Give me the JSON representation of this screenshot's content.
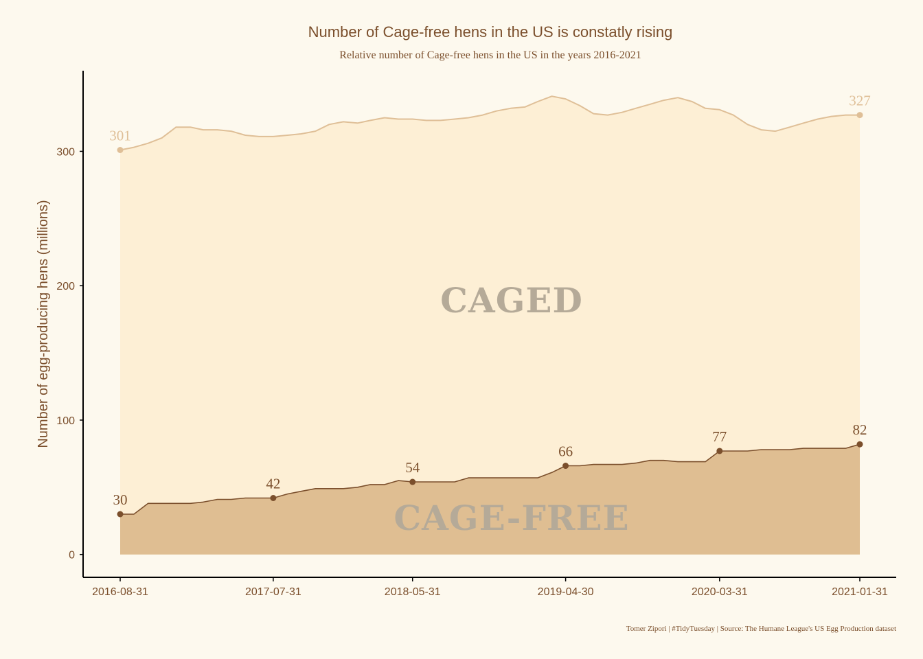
{
  "chart_data": {
    "type": "area",
    "title": "Number of Cage-free hens in the US is constatly rising",
    "subtitle": "Relative number of Cage-free hens in the US in the years 2016-2021",
    "ylabel": "Number of egg-producing hens (millions)",
    "xlabel": "",
    "caption": "Tomer Zipori | #TidyTuesday | Source: The Humane League's US Egg Production dataset",
    "xlim": [
      "2016-08-31",
      "2021-01-31"
    ],
    "ylim": [
      -17,
      360
    ],
    "y_ticks": [
      0,
      100,
      200,
      300
    ],
    "x_ticks": [
      "2016-08-31",
      "2017-07-31",
      "2018-05-31",
      "2019-04-30",
      "2020-03-31",
      "2021-01-31"
    ],
    "area_labels": {
      "caged": "CAGED",
      "cage_free": "CAGE-FREE"
    },
    "colors": {
      "total_fill": "#fdefd5",
      "total_line": "#dfbf97",
      "cage_free_fill": "#dfbe92",
      "cage_free_line": "#7b4f2c",
      "stencil_text": "#b5aa98"
    },
    "series": [
      {
        "key": "total",
        "x": [
          "2016-08-31",
          "2016-09-30",
          "2016-10-31",
          "2016-11-30",
          "2016-12-31",
          "2017-01-31",
          "2017-02-28",
          "2017-03-31",
          "2017-04-30",
          "2017-05-31",
          "2017-06-30",
          "2017-07-31",
          "2017-08-31",
          "2017-09-30",
          "2017-10-31",
          "2017-11-30",
          "2017-12-31",
          "2018-01-31",
          "2018-02-28",
          "2018-03-31",
          "2018-04-30",
          "2018-05-31",
          "2018-06-30",
          "2018-07-31",
          "2018-08-31",
          "2018-09-30",
          "2018-10-31",
          "2018-11-30",
          "2018-12-31",
          "2019-01-31",
          "2019-02-28",
          "2019-03-31",
          "2019-04-30",
          "2019-05-31",
          "2019-06-30",
          "2019-07-31",
          "2019-08-31",
          "2019-09-30",
          "2019-10-31",
          "2019-11-30",
          "2019-12-31",
          "2020-01-31",
          "2020-02-29",
          "2020-03-31",
          "2020-04-30",
          "2020-05-31",
          "2020-06-30",
          "2020-07-31",
          "2020-08-31",
          "2020-09-30",
          "2020-10-31",
          "2020-11-30",
          "2020-12-31",
          "2021-01-31"
        ],
        "values": [
          301,
          303,
          306,
          310,
          318,
          318,
          316,
          316,
          315,
          312,
          311,
          311,
          312,
          313,
          315,
          320,
          322,
          321,
          323,
          325,
          324,
          324,
          323,
          323,
          324,
          325,
          327,
          330,
          332,
          333,
          337,
          341,
          339,
          334,
          328,
          327,
          329,
          332,
          335,
          338,
          340,
          337,
          332,
          331,
          327,
          320,
          316,
          315,
          318,
          321,
          324,
          326,
          327,
          327
        ]
      },
      {
        "key": "cage_free",
        "x": [
          "2016-08-31",
          "2016-09-30",
          "2016-10-31",
          "2016-11-30",
          "2016-12-31",
          "2017-01-31",
          "2017-02-28",
          "2017-03-31",
          "2017-04-30",
          "2017-05-31",
          "2017-06-30",
          "2017-07-31",
          "2017-08-31",
          "2017-09-30",
          "2017-10-31",
          "2017-11-30",
          "2017-12-31",
          "2018-01-31",
          "2018-02-28",
          "2018-03-31",
          "2018-04-30",
          "2018-05-31",
          "2018-06-30",
          "2018-07-31",
          "2018-08-31",
          "2018-09-30",
          "2018-10-31",
          "2018-11-30",
          "2018-12-31",
          "2019-01-31",
          "2019-02-28",
          "2019-03-31",
          "2019-04-30",
          "2019-05-31",
          "2019-06-30",
          "2019-07-31",
          "2019-08-31",
          "2019-09-30",
          "2019-10-31",
          "2019-11-30",
          "2019-12-31",
          "2020-01-31",
          "2020-02-29",
          "2020-03-31",
          "2020-04-30",
          "2020-05-31",
          "2020-06-30",
          "2020-07-31",
          "2020-08-31",
          "2020-09-30",
          "2020-10-31",
          "2020-11-30",
          "2020-12-31",
          "2021-01-31"
        ],
        "values": [
          30,
          30,
          38,
          38,
          38,
          38,
          39,
          41,
          41,
          42,
          42,
          42,
          45,
          47,
          49,
          49,
          49,
          50,
          52,
          52,
          55,
          54,
          54,
          54,
          54,
          57,
          57,
          57,
          57,
          57,
          57,
          61,
          66,
          66,
          67,
          67,
          67,
          68,
          70,
          70,
          69,
          69,
          69,
          77,
          77,
          77,
          78,
          78,
          78,
          79,
          79,
          79,
          79,
          82
        ]
      }
    ],
    "labeled_points": [
      {
        "series": "total",
        "x": "2016-08-31",
        "y": 301,
        "text": "301"
      },
      {
        "series": "total",
        "x": "2021-01-31",
        "y": 327,
        "text": "327"
      },
      {
        "series": "cage_free",
        "x": "2016-08-31",
        "y": 30,
        "text": "30"
      },
      {
        "series": "cage_free",
        "x": "2017-07-31",
        "y": 42,
        "text": "42"
      },
      {
        "series": "cage_free",
        "x": "2018-05-31",
        "y": 54,
        "text": "54"
      },
      {
        "series": "cage_free",
        "x": "2019-04-30",
        "y": 66,
        "text": "66"
      },
      {
        "series": "cage_free",
        "x": "2020-03-31",
        "y": 77,
        "text": "77"
      },
      {
        "series": "cage_free",
        "x": "2021-01-31",
        "y": 82,
        "text": "82"
      }
    ]
  }
}
